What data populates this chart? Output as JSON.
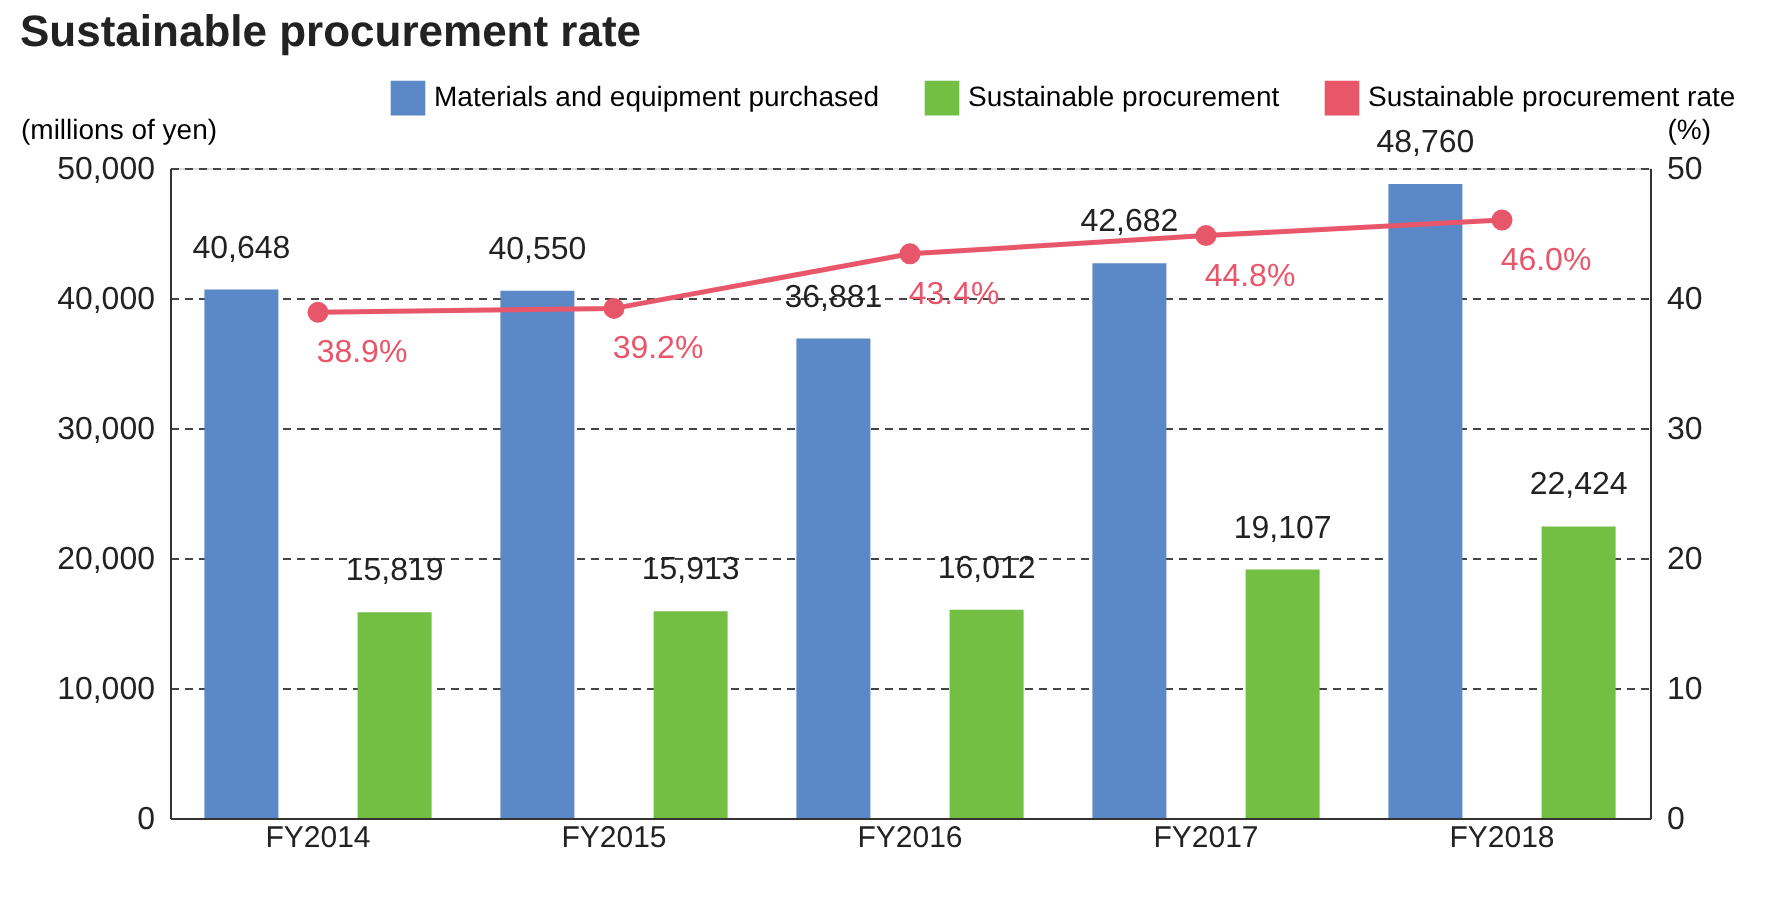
{
  "chart_data": {
    "type": "bar",
    "title": "Sustainable procurement rate",
    "categories": [
      "FY2014",
      "FY2015",
      "FY2016",
      "FY2017",
      "FY2018"
    ],
    "series": [
      {
        "name": "Materials and equipment purchased",
        "color": "#5b88c6",
        "values": [
          40648,
          40550,
          36881,
          42682,
          48760
        ],
        "value_labels": [
          "40,648",
          "40,550",
          "36,881",
          "42,682",
          "48,760"
        ]
      },
      {
        "name": "Sustainable procurement",
        "color": "#72bf44",
        "values": [
          15819,
          15913,
          16012,
          19107,
          22424
        ],
        "value_labels": [
          "15,819",
          "15,913",
          "16,012",
          "19,107",
          "22,424"
        ]
      },
      {
        "name": "Sustainable procurement rate",
        "type": "line",
        "axis": "y2",
        "color": "#e8566a",
        "marker": "circle",
        "values": [
          38.9,
          39.2,
          43.4,
          44.8,
          46.0
        ],
        "value_labels": [
          "38.9%",
          "39.2%",
          "43.4%",
          "44.8%",
          "46.0%"
        ]
      }
    ],
    "ylabel": "(millions of yen)",
    "y2label": "(%)",
    "ylim": [
      0,
      50000
    ],
    "yticks": [
      0,
      {
        "value": 10000,
        "label": "10,000"
      },
      {
        "value": 20000,
        "label": "20,000"
      },
      {
        "value": 30000,
        "label": "30,000"
      },
      {
        "value": 40000,
        "label": "40,000"
      },
      {
        "value": 50000,
        "label": "50,000"
      }
    ],
    "y2lim": [
      0,
      50
    ],
    "y2ticks": [
      0,
      10,
      20,
      30,
      40,
      50
    ],
    "grid": "y",
    "legend": "top right"
  }
}
